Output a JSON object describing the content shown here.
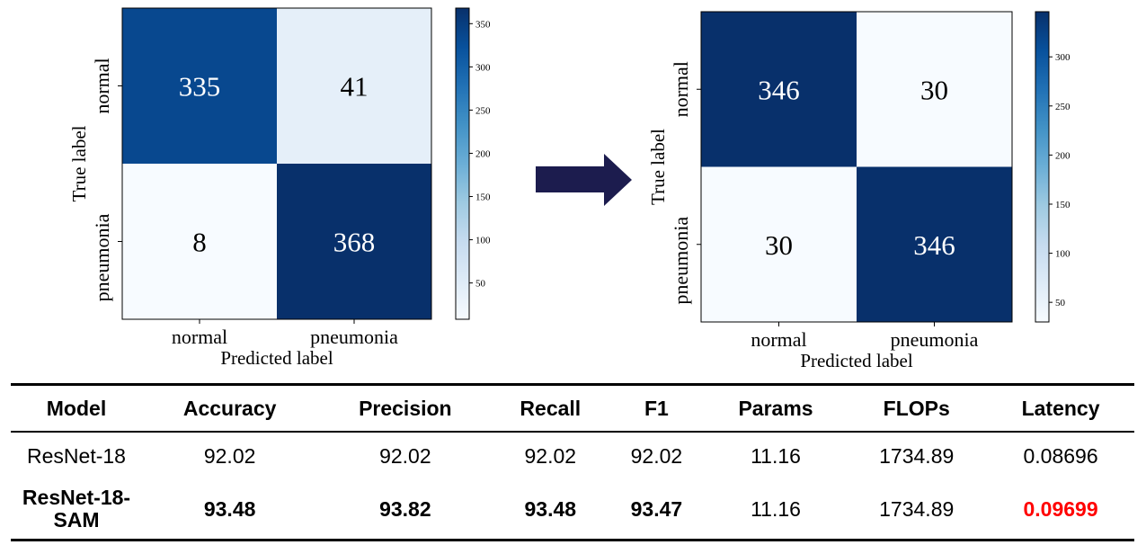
{
  "chart_data": [
    {
      "type": "heatmap",
      "title": "",
      "xlabel": "Predicted label",
      "ylabel": "True label",
      "x_categories": [
        "normal",
        "pneumonia"
      ],
      "y_categories": [
        "normal",
        "pneumonia"
      ],
      "values": [
        [
          335,
          41
        ],
        [
          8,
          368
        ]
      ],
      "colormap": "Blues",
      "colorbar": {
        "range": [
          8,
          368
        ],
        "ticks": [
          50,
          100,
          150,
          200,
          250,
          300,
          350
        ]
      }
    },
    {
      "type": "heatmap",
      "title": "",
      "xlabel": "Predicted label",
      "ylabel": "True label",
      "x_categories": [
        "normal",
        "pneumonia"
      ],
      "y_categories": [
        "normal",
        "pneumonia"
      ],
      "values": [
        [
          346,
          30
        ],
        [
          30,
          346
        ]
      ],
      "colormap": "Blues",
      "colorbar": {
        "range": [
          30,
          346
        ],
        "ticks": [
          50,
          100,
          150,
          200,
          250,
          300
        ]
      }
    }
  ],
  "arrow_color": "#1c1c4e",
  "table": {
    "headers": [
      "Model",
      "Accuracy",
      "Precision",
      "Recall",
      "F1",
      "Params",
      "FLOPs",
      "Latency"
    ],
    "rows": [
      {
        "cells": [
          "ResNet-18",
          "92.02",
          "92.02",
          "92.02",
          "92.02",
          "11.16",
          "1734.89",
          "0.08696"
        ],
        "bold": [
          false,
          false,
          false,
          false,
          false,
          false,
          false,
          false
        ],
        "highlight": [
          false,
          false,
          false,
          false,
          false,
          false,
          false,
          false
        ]
      },
      {
        "cells": [
          "ResNet-18-SAM",
          "93.48",
          "93.82",
          "93.48",
          "93.47",
          "11.16",
          "1734.89",
          "0.09699"
        ],
        "bold": [
          true,
          true,
          true,
          true,
          true,
          false,
          false,
          true
        ],
        "highlight": [
          false,
          false,
          false,
          false,
          false,
          false,
          false,
          true
        ]
      }
    ],
    "highlight_color": "#ff0000"
  }
}
